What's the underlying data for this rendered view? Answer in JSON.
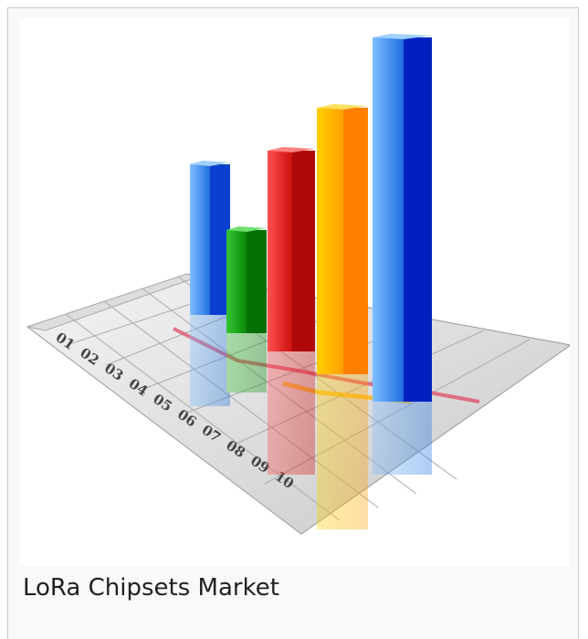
{
  "image": {
    "axis_labels": [
      "01",
      "02",
      "03",
      "04",
      "05",
      "06",
      "07",
      "08",
      "09",
      "10"
    ]
  },
  "caption": "LoRa Chipsets Market"
}
